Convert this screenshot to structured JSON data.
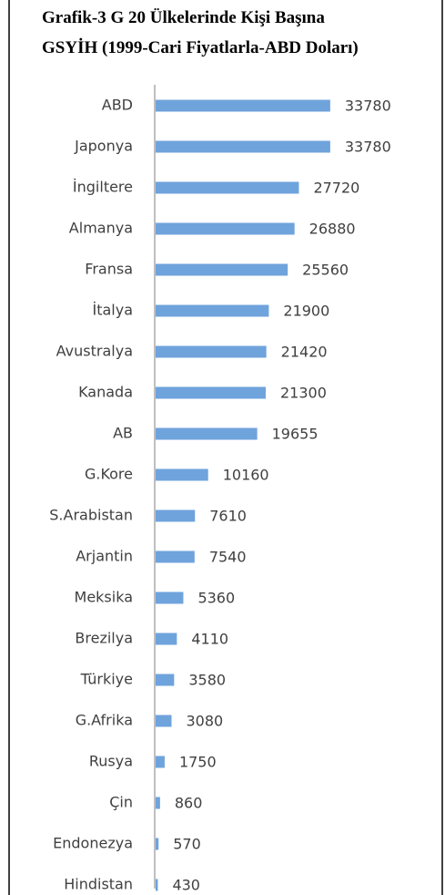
{
  "chart_data": {
    "type": "barh",
    "title": [
      "Grafik-3 G 20 Ülkelerinde Kişi Başına",
      "GSYİH (1999-Cari Fiyatlarla-ABD Doları)"
    ],
    "categories": [
      "ABD",
      "Japonya",
      "İngiltere",
      "Almanya",
      "Fransa",
      "İtalya",
      "Avustralya",
      "Kanada",
      "AB",
      "G.Kore",
      "S.Arabistan",
      "Arjantin",
      "Meksika",
      "Brezilya",
      "Türkiye",
      "G.Afrika",
      "Rusya",
      "Çin",
      "Endonezya",
      "Hindistan"
    ],
    "values": [
      33780,
      33780,
      27720,
      26880,
      25560,
      21900,
      21420,
      21300,
      19655,
      10160,
      7610,
      7540,
      5360,
      4110,
      3580,
      3080,
      1750,
      860,
      570,
      430
    ],
    "color": "#6fa3dc",
    "xlim": [
      0,
      50000
    ]
  }
}
